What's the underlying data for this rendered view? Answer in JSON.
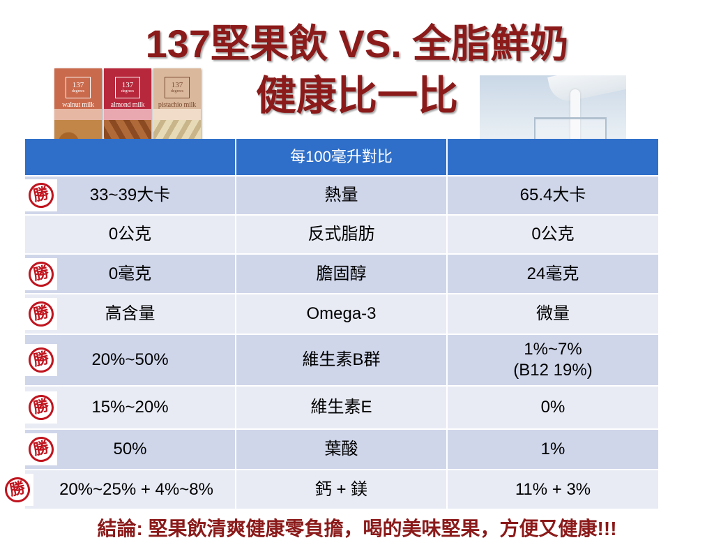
{
  "title_line1": "137堅果飲 VS. 全脂鮮奶",
  "title_line2": "健康比一比",
  "products": [
    {
      "brand": "137",
      "sub": "degrees",
      "name": "walnut milk"
    },
    {
      "brand": "137",
      "sub": "degrees",
      "name": "almond milk"
    },
    {
      "brand": "137",
      "sub": "degrees",
      "name": "pistachio milk"
    }
  ],
  "table": {
    "header": [
      "",
      "每100毫升對比",
      ""
    ],
    "rows": [
      {
        "left": "33~39大卡",
        "item": "熱量",
        "right": "65.4大卡",
        "win": "勝"
      },
      {
        "left": "0公克",
        "item": "反式脂肪",
        "right": "0公克",
        "win": ""
      },
      {
        "left": "0毫克",
        "item": "膽固醇",
        "right": "24毫克",
        "win": "勝"
      },
      {
        "left": "高含量",
        "item": "Omega-3",
        "right": "微量",
        "win": "勝"
      },
      {
        "left": "20%~50%",
        "item": "維生素B群",
        "right": "1%~7%",
        "right2": "(B12 19%)",
        "win": "勝"
      },
      {
        "left": "15%~20%",
        "item": "維生素E",
        "right": "0%",
        "win": "勝"
      },
      {
        "left": "50%",
        "item": "葉酸",
        "right": "1%",
        "win": "勝"
      },
      {
        "left": "20%~25% + 4%~8%",
        "item": "鈣 + 鎂",
        "right": "11% + 3%",
        "win": "勝"
      }
    ]
  },
  "conclusion": "結論: 堅果飲清爽健康零負擔，喝的美味堅果，方便又健康!!!",
  "colors": {
    "title": "#8b1a1a",
    "header": "#2f6fc9",
    "row_dark": "#cfd6ea",
    "row_light": "#e8ebf4",
    "stamp": "#c0141e"
  }
}
